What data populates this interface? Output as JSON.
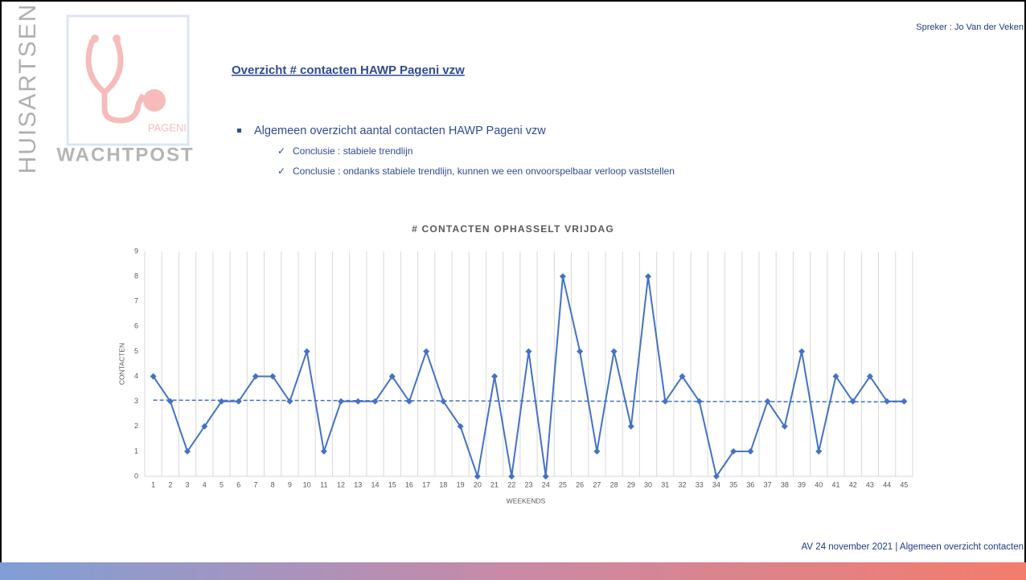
{
  "slide": {
    "logo": {
      "vertical": "HUISARTSEN",
      "brand": "PAGENI",
      "bottom": "WACHTPOST"
    },
    "speaker": "Spreker : Jo Van der Veken",
    "heading": "Overzicht # contacten HAWP Pageni vzw",
    "bullet": "Algemeen overzicht aantal contacten HAWP Pageni vzw",
    "subbullets": [
      "Conclusie : stabiele trendlijn",
      "Conclusie : ondanks stabiele trendlijn, kunnen we een onvoorspelbaar verloop vaststellen"
    ],
    "footer": "AV 24 november 2021 | Algemeen overzicht contacten"
  },
  "chart_data": {
    "type": "line",
    "title": "# CONTACTEN OPHASSELT VRIJDAG",
    "x_label": "WEEKENDS",
    "y_label": "CONTACTEN",
    "categories": [
      "1",
      "2",
      "3",
      "4",
      "5",
      "6",
      "7",
      "8",
      "9",
      "10",
      "11",
      "12",
      "13",
      "14",
      "15",
      "16",
      "17",
      "18",
      "19",
      "20",
      "21",
      "22",
      "23",
      "24",
      "25",
      "26",
      "27",
      "28",
      "29",
      "30",
      "31",
      "32",
      "33",
      "34",
      "35",
      "36",
      "37",
      "38",
      "39",
      "40",
      "41",
      "42",
      "43",
      "44",
      "45"
    ],
    "series": [
      {
        "name": "contacten",
        "color": "#4472c4",
        "values": [
          4,
          3,
          1,
          2,
          3,
          3,
          4,
          4,
          3,
          5,
          1,
          3,
          3,
          3,
          4,
          3,
          5,
          3,
          2,
          0,
          4,
          0,
          5,
          0,
          8,
          5,
          1,
          5,
          2,
          8,
          3,
          4,
          3,
          0,
          1,
          1,
          3,
          2,
          5,
          1,
          4,
          3,
          4,
          3,
          3
        ]
      }
    ],
    "trendline": [
      3.05,
      2.98
    ],
    "ylim": [
      0,
      9
    ],
    "yticks": [
      0,
      1,
      2,
      3,
      4,
      5,
      6,
      7,
      8,
      9
    ],
    "grid": true
  }
}
